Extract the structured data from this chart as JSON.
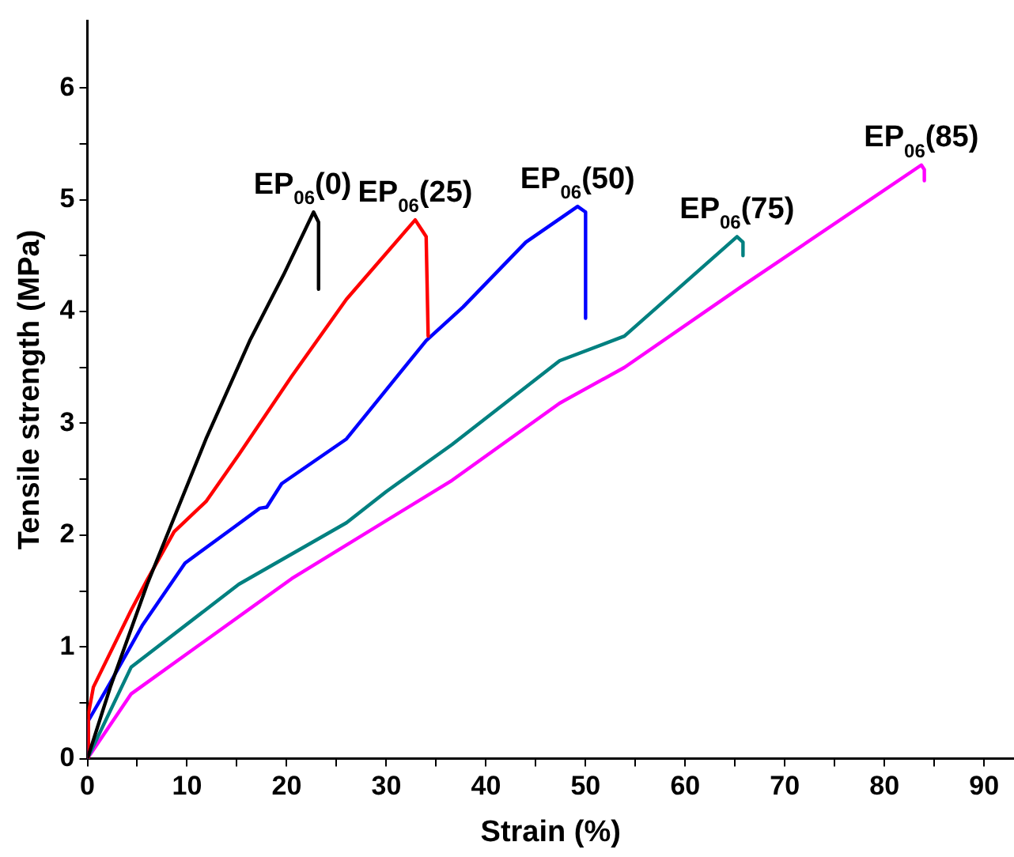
{
  "chart_data": {
    "type": "line",
    "xlabel": "Strain (%)",
    "ylabel": "Tensile strength (MPa)",
    "xlim": [
      0,
      93
    ],
    "ylim": [
      0,
      6.6
    ],
    "xticks": [
      0,
      {
        "value": 5,
        "label": null
      },
      10,
      {
        "value": 15,
        "label": null
      },
      20,
      {
        "value": 25,
        "label": null
      },
      30,
      {
        "value": 35,
        "label": null
      },
      40,
      {
        "value": 45,
        "label": null
      },
      50,
      {
        "value": 55,
        "label": null
      },
      60,
      {
        "value": 65,
        "label": null
      },
      70,
      {
        "value": 75,
        "label": null
      },
      80,
      {
        "value": 85,
        "label": null
      },
      90
    ],
    "yticks": [
      0,
      {
        "value": 0.5,
        "label": null
      },
      1,
      {
        "value": 1.5,
        "label": null
      },
      2,
      {
        "value": 2.5,
        "label": null
      },
      3,
      {
        "value": 3.5,
        "label": null
      },
      4,
      {
        "value": 4.5,
        "label": null
      },
      5,
      {
        "value": 5.5,
        "label": null
      },
      6
    ],
    "grid": false,
    "legend": false,
    "marker": "none",
    "line_style": "solid",
    "series": [
      {
        "name": "EP$_{06}$(0)",
        "color": "#000000",
        "x": [
          0,
          2.3,
          6,
          11.9,
          16.3,
          19.7,
          22.7,
          23.2,
          23.2
        ],
        "values": [
          0,
          0.64,
          1.56,
          2.86,
          3.74,
          4.33,
          4.89,
          4.8,
          4.2
        ]
      },
      {
        "name": "EP$_{06}$(25)",
        "color": "#ff0000",
        "x": [
          0,
          0.1,
          0.6,
          4.4,
          6,
          8.7,
          11.9,
          15.2,
          20.5,
          26,
          32.9,
          34,
          34.2
        ],
        "values": [
          0,
          0.4,
          0.64,
          1.33,
          1.6,
          2.03,
          2.3,
          2.72,
          3.42,
          4.11,
          4.82,
          4.67,
          3.78
        ]
      },
      {
        "name": "EP$_{06}$(50)",
        "color": "#0000ff",
        "x": [
          0,
          0.1,
          2.3,
          5.5,
          9.8,
          14.7,
          17.3,
          18,
          19.5,
          26,
          34,
          37.7,
          44,
          49.2,
          50,
          50
        ],
        "values": [
          0,
          0.34,
          0.68,
          1.19,
          1.75,
          2.07,
          2.24,
          2.25,
          2.46,
          2.86,
          3.74,
          4.04,
          4.62,
          4.94,
          4.89,
          3.94
        ]
      },
      {
        "name": "EP$_{06}$(75)",
        "color": "#008080",
        "x": [
          0,
          4.4,
          15.2,
          26,
          30,
          36.6,
          47.4,
          53.9,
          65.2,
          65.8,
          65.8
        ],
        "values": [
          0,
          0.82,
          1.56,
          2.11,
          2.39,
          2.81,
          3.56,
          3.78,
          4.67,
          4.62,
          4.5
        ]
      },
      {
        "name": "EP$_{06}$(85)",
        "color": "#ff00ff",
        "x": [
          0,
          4.4,
          20.5,
          36.6,
          47.4,
          53.9,
          65.6,
          83.7,
          84,
          84
        ],
        "values": [
          0,
          0.58,
          1.61,
          2.49,
          3.18,
          3.5,
          4.22,
          5.31,
          5.27,
          5.17
        ]
      }
    ]
  }
}
